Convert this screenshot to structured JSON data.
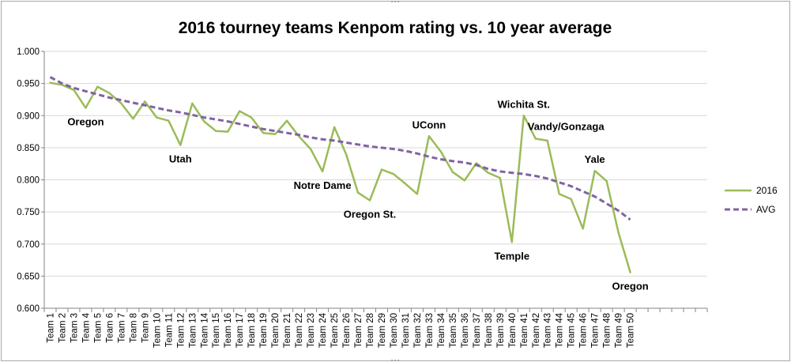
{
  "chart_data": {
    "type": "line",
    "title": "2016 tourney teams Kenpom rating vs. 10 year average",
    "xlabel": "",
    "ylabel": "",
    "ylim": [
      0.6,
      1.0
    ],
    "yticks": [
      "0.600",
      "0.650",
      "0.700",
      "0.750",
      "0.800",
      "0.850",
      "0.900",
      "0.950",
      "1.000"
    ],
    "ytick_values": [
      0.6,
      0.65,
      0.7,
      0.75,
      0.8,
      0.85,
      0.9,
      0.95,
      1.0
    ],
    "grid": true,
    "legend_position": "right",
    "categories": [
      "Team 1",
      "Team 2",
      "Team 3",
      "Team 4",
      "Team 5",
      "Team 6",
      "Team 7",
      "Team 8",
      "Team 9",
      "Team 10",
      "Team 11",
      "Team 12",
      "Team 13",
      "Team 14",
      "Team 15",
      "Team 16",
      "Team 17",
      "Team 18",
      "Team 19",
      "Team 20",
      "Team 21",
      "Team 22",
      "Team 23",
      "Team 24",
      "Team 25",
      "Team 26",
      "Team 27",
      "Team 28",
      "Team 29",
      "Team 30",
      "Team 31",
      "Team 32",
      "Team 33",
      "Team 34",
      "Team 35",
      "Team 36",
      "Team 37",
      "Team 38",
      "Team 39",
      "Team 40",
      "Team 41",
      "Team 42",
      "Team 43",
      "Team 44",
      "Team 45",
      "Team 46",
      "Team 47",
      "Team 48",
      "Team 49",
      "Team 50"
    ],
    "series": [
      {
        "name": "2016",
        "color": "#9bbb59",
        "style": "solid",
        "values": [
          0.951,
          0.948,
          0.94,
          0.912,
          0.945,
          0.935,
          0.919,
          0.895,
          0.922,
          0.897,
          0.892,
          0.854,
          0.919,
          0.891,
          0.876,
          0.875,
          0.907,
          0.897,
          0.873,
          0.871,
          0.892,
          0.868,
          0.848,
          0.813,
          0.882,
          0.84,
          0.78,
          0.768,
          0.816,
          0.809,
          0.794,
          0.778,
          0.868,
          0.844,
          0.812,
          0.799,
          0.826,
          0.811,
          0.803,
          0.703,
          0.9,
          0.864,
          0.861,
          0.778,
          0.77,
          0.724,
          0.814,
          0.798,
          0.718,
          0.656
        ]
      },
      {
        "name": "AVG",
        "color": "#8064a2",
        "style": "dashed",
        "values": [
          0.96,
          0.95,
          0.943,
          0.938,
          0.933,
          0.928,
          0.924,
          0.92,
          0.916,
          0.912,
          0.908,
          0.905,
          0.901,
          0.897,
          0.894,
          0.891,
          0.887,
          0.883,
          0.879,
          0.876,
          0.873,
          0.87,
          0.866,
          0.863,
          0.861,
          0.858,
          0.855,
          0.852,
          0.85,
          0.848,
          0.845,
          0.841,
          0.836,
          0.832,
          0.829,
          0.827,
          0.823,
          0.817,
          0.813,
          0.811,
          0.809,
          0.806,
          0.802,
          0.796,
          0.79,
          0.782,
          0.774,
          0.763,
          0.752,
          0.738
        ]
      }
    ],
    "annotations": [
      {
        "text": "Oregon",
        "team": 4,
        "value": 0.912,
        "position": "below"
      },
      {
        "text": "Utah",
        "team": 12,
        "value": 0.854,
        "position": "below"
      },
      {
        "text": "Notre Dame",
        "team": 24,
        "value": 0.813,
        "position": "below"
      },
      {
        "text": "Oregon St.",
        "team": 28,
        "value": 0.768,
        "position": "below"
      },
      {
        "text": "UConn",
        "team": 33,
        "value": 0.868,
        "position": "above"
      },
      {
        "text": "Temple",
        "team": 40,
        "value": 0.703,
        "position": "below"
      },
      {
        "text": "Wichita St.",
        "team": 41,
        "value": 0.9,
        "position": "above"
      },
      {
        "text": "Vandy/Gonzaga",
        "team": 42,
        "value": 0.864,
        "position": "right"
      },
      {
        "text": "Yale",
        "team": 47,
        "value": 0.814,
        "position": "above"
      },
      {
        "text": "Oregon",
        "team": 50,
        "value": 0.656,
        "position": "below"
      }
    ]
  }
}
